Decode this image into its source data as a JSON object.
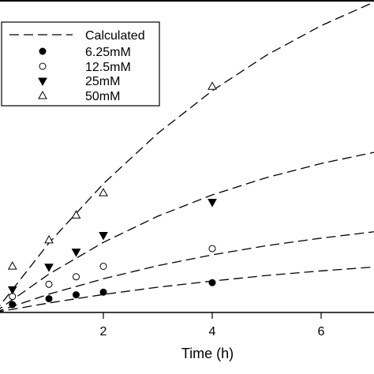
{
  "chart_data": {
    "type": "scatter",
    "title": "",
    "xlabel": "Time (h)",
    "ylabel": "",
    "xlim": [
      -0.1,
      7.0
    ],
    "ylim": [
      -0.02,
      1.0
    ],
    "xticks": [
      2,
      4,
      6
    ],
    "xtick_labels": [
      "2",
      "4",
      "6"
    ],
    "grid": false,
    "legend_position": "top-left",
    "legend": [
      {
        "label": "Calculated",
        "marker": "dashed-line"
      },
      {
        "label": "6.25mM",
        "marker": "filled-circle"
      },
      {
        "label": "12.5mM",
        "marker": "open-circle"
      },
      {
        "label": "25mM",
        "marker": "filled-triangle-down"
      },
      {
        "label": "50mM",
        "marker": "open-triangle-up"
      }
    ],
    "series": [
      {
        "name": "6.25mM",
        "marker": "filled-circle",
        "x": [
          0.33,
          1.0,
          1.5,
          2.0,
          4.0
        ],
        "y": [
          0.024,
          0.042,
          0.054,
          0.062,
          0.091
        ]
      },
      {
        "name": "12.5mM",
        "marker": "open-circle",
        "x": [
          0.33,
          1.0,
          1.5,
          2.0,
          4.0
        ],
        "y": [
          0.049,
          0.086,
          0.109,
          0.141,
          0.195
        ]
      },
      {
        "name": "25mM",
        "marker": "filled-triangle-down",
        "x": [
          0.33,
          1.0,
          1.5,
          2.0,
          4.0
        ],
        "y": [
          0.069,
          0.138,
          0.184,
          0.235,
          0.336
        ]
      },
      {
        "name": "50mM",
        "marker": "open-triangle-up",
        "x": [
          0.33,
          1.0,
          1.5,
          2.0,
          4.0
        ],
        "y": [
          0.142,
          0.222,
          0.298,
          0.366,
          0.691
        ]
      }
    ],
    "calculated": [
      {
        "name": "Calculated",
        "curve_for": "6.25mM",
        "x": [
          0,
          1,
          2,
          3,
          4,
          5,
          6,
          7
        ],
        "y": [
          0.0,
          0.029,
          0.055,
          0.077,
          0.096,
          0.113,
          0.127,
          0.139
        ]
      },
      {
        "name": "Calculated",
        "curve_for": "12.5mM",
        "x": [
          0,
          1,
          2,
          3,
          4,
          5,
          6,
          7
        ],
        "y": [
          0.0,
          0.056,
          0.103,
          0.143,
          0.176,
          0.204,
          0.227,
          0.247
        ]
      },
      {
        "name": "Calculated",
        "curve_for": "25mM",
        "x": [
          0,
          1,
          2,
          3,
          4,
          5,
          6,
          7
        ],
        "y": [
          0.0,
          0.117,
          0.214,
          0.294,
          0.359,
          0.412,
          0.455,
          0.49
        ]
      },
      {
        "name": "Calculated",
        "curve_for": "50mM",
        "x": [
          0,
          1,
          2,
          3,
          4,
          5,
          6,
          7
        ],
        "y": [
          0.0,
          0.212,
          0.393,
          0.547,
          0.677,
          0.786,
          0.876,
          0.95
        ]
      }
    ]
  }
}
